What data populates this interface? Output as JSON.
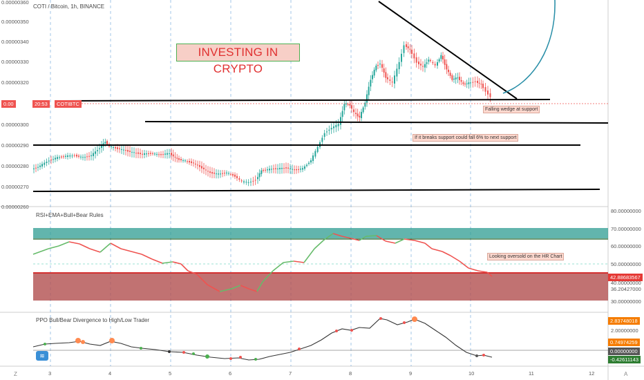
{
  "header": {
    "symbol_title": "COTI / Bitcoin, 1h, BINANCE",
    "price_badge_time": "20:53",
    "price_badge_symbol": "COTIBTC",
    "price_badge_value": "0.00"
  },
  "annotations": {
    "brand_label": "INVESTING IN CRYPTO",
    "falling_wedge": "Falling wedge at support",
    "break_support": "If it breaks support could fall 6% to next support",
    "oversold": "Looking oversold on the HR Chart"
  },
  "price_axis": {
    "ticks": [
      "0.00000360",
      "0.00000350",
      "0.00000340",
      "0.00000330",
      "0.00000320",
      "0.00000300",
      "0.00000290",
      "0.00000280",
      "0.00000270",
      "0.00000260"
    ]
  },
  "rsi_pane": {
    "title": "RSI+EMA+Bull+Bear Rules",
    "ticks": [
      "80.00000000",
      "70.00000000",
      "60.00000000",
      "50.00000000",
      "40.00000000",
      "30.00000000"
    ],
    "badge_current": "42.88683567",
    "badge_other": "36.20427000"
  },
  "ppo_pane": {
    "title": "PPO Bull/Bear Divergence to High/Low Trader",
    "ticks": [
      "2.00000000",
      "0.00000000"
    ],
    "badge_top": "2.83748018",
    "badge_mid": "0.74974259",
    "badge_zero": "0.00000000",
    "badge_neg": "-0.42611143"
  },
  "time_axis": {
    "ticks": [
      "3",
      "4",
      "5",
      "6",
      "7",
      "8",
      "9",
      "10",
      "11",
      "12"
    ],
    "left_corner": "Z",
    "right_corner": "A"
  },
  "colors": {
    "up": "#26a69a",
    "down": "#ef5350",
    "rsi_upper_band": "#2e9c92",
    "rsi_lower_band": "#b14f4f",
    "curve": "#2a8fa8"
  }
}
